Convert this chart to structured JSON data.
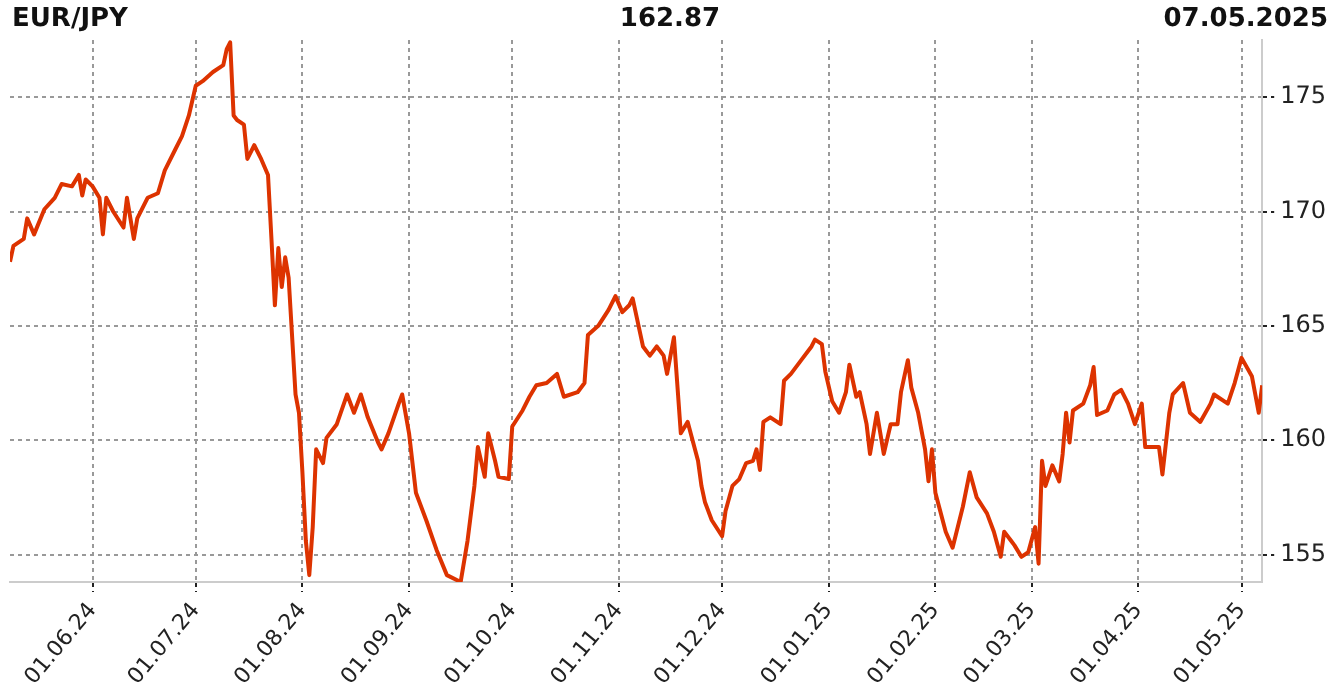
{
  "chart_data": {
    "type": "line",
    "title": "EUR/JPY",
    "annotations": [
      "162.87",
      "07.05.2025"
    ],
    "x": [
      "2024-05-08",
      "2024-05-09",
      "2024-05-12",
      "2024-05-13",
      "2024-05-15",
      "2024-05-18",
      "2024-05-21",
      "2024-05-23",
      "2024-05-26",
      "2024-05-28",
      "2024-05-29",
      "2024-05-30",
      "2024-06-01",
      "2024-06-03",
      "2024-06-04",
      "2024-06-05",
      "2024-06-07",
      "2024-06-10",
      "2024-06-11",
      "2024-06-13",
      "2024-06-14",
      "2024-06-17",
      "2024-06-20",
      "2024-06-22",
      "2024-06-25",
      "2024-06-27",
      "2024-06-29",
      "2024-07-01",
      "2024-07-03",
      "2024-07-06",
      "2024-07-09",
      "2024-07-10",
      "2024-07-11",
      "2024-07-12",
      "2024-07-13",
      "2024-07-15",
      "2024-07-16",
      "2024-07-18",
      "2024-07-20",
      "2024-07-22",
      "2024-07-23",
      "2024-07-24",
      "2024-07-25",
      "2024-07-26",
      "2024-07-27",
      "2024-07-28",
      "2024-07-30",
      "2024-07-31",
      "2024-08-01",
      "2024-08-02",
      "2024-08-03",
      "2024-08-04",
      "2024-08-05",
      "2024-08-07",
      "2024-08-08",
      "2024-08-11",
      "2024-08-14",
      "2024-08-16",
      "2024-08-18",
      "2024-08-20",
      "2024-08-23",
      "2024-08-24",
      "2024-08-26",
      "2024-08-29",
      "2024-08-30",
      "2024-09-01",
      "2024-09-03",
      "2024-09-06",
      "2024-09-09",
      "2024-09-12",
      "2024-09-16",
      "2024-09-18",
      "2024-09-20",
      "2024-09-21",
      "2024-09-23",
      "2024-09-24",
      "2024-09-26",
      "2024-09-27",
      "2024-09-30",
      "2024-10-01",
      "2024-10-04",
      "2024-10-06",
      "2024-10-08",
      "2024-10-11",
      "2024-10-14",
      "2024-10-16",
      "2024-10-20",
      "2024-10-22",
      "2024-10-23",
      "2024-10-26",
      "2024-10-29",
      "2024-10-31",
      "2024-11-02",
      "2024-11-04",
      "2024-11-05",
      "2024-11-06",
      "2024-11-08",
      "2024-11-10",
      "2024-11-12",
      "2024-11-14",
      "2024-11-15",
      "2024-11-17",
      "2024-11-18",
      "2024-11-19",
      "2024-11-21",
      "2024-11-24",
      "2024-11-25",
      "2024-11-26",
      "2024-11-28",
      "2024-12-01",
      "2024-12-02",
      "2024-12-04",
      "2024-12-06",
      "2024-12-08",
      "2024-12-10",
      "2024-12-11",
      "2024-12-12",
      "2024-12-13",
      "2024-12-15",
      "2024-12-18",
      "2024-12-19",
      "2024-12-21",
      "2024-12-24",
      "2024-12-27",
      "2024-12-28",
      "2024-12-30",
      "2024-12-31",
      "2025-01-02",
      "2025-01-04",
      "2025-01-06",
      "2025-01-07",
      "2025-01-09",
      "2025-01-10",
      "2025-01-12",
      "2025-01-13",
      "2025-01-15",
      "2025-01-17",
      "2025-01-19",
      "2025-01-21",
      "2025-01-22",
      "2025-01-24",
      "2025-01-25",
      "2025-01-27",
      "2025-01-29",
      "2025-01-30",
      "2025-01-31",
      "2025-02-01",
      "2025-02-04",
      "2025-02-06",
      "2025-02-09",
      "2025-02-11",
      "2025-02-13",
      "2025-02-16",
      "2025-02-18",
      "2025-02-20",
      "2025-02-21",
      "2025-02-23",
      "2025-02-24",
      "2025-02-26",
      "2025-02-28",
      "2025-03-02",
      "2025-03-03",
      "2025-03-04",
      "2025-03-05",
      "2025-03-07",
      "2025-03-09",
      "2025-03-10",
      "2025-03-11",
      "2025-03-12",
      "2025-03-13",
      "2025-03-16",
      "2025-03-18",
      "2025-03-19",
      "2025-03-20",
      "2025-03-23",
      "2025-03-25",
      "2025-03-27",
      "2025-03-29",
      "2025-03-31",
      "2025-04-02",
      "2025-04-03",
      "2025-04-07",
      "2025-04-08",
      "2025-04-10",
      "2025-04-11",
      "2025-04-14",
      "2025-04-16",
      "2025-04-19",
      "2025-04-22",
      "2025-04-23",
      "2025-04-27",
      "2025-04-29",
      "2025-05-01",
      "2025-05-04",
      "2025-05-06",
      "2025-05-07"
    ],
    "series": [
      {
        "color": "#dd3300",
        "values": [
          167.8,
          168.5,
          168.8,
          169.7,
          169.0,
          170.1,
          170.6,
          171.2,
          171.1,
          171.6,
          170.7,
          171.4,
          171.1,
          170.6,
          169.0,
          170.6,
          170.0,
          169.3,
          170.6,
          168.8,
          169.7,
          170.6,
          170.8,
          171.8,
          172.7,
          173.3,
          174.2,
          175.5,
          175.7,
          176.1,
          176.4,
          177.1,
          177.4,
          174.2,
          174.0,
          173.8,
          172.3,
          172.9,
          172.3,
          171.6,
          168.8,
          165.9,
          168.4,
          166.7,
          168.0,
          167.1,
          162.0,
          161.2,
          158.6,
          155.6,
          154.1,
          156.2,
          159.6,
          159.0,
          160.1,
          160.7,
          162.0,
          161.2,
          162.0,
          161.0,
          159.9,
          159.6,
          160.3,
          161.6,
          162.0,
          160.3,
          157.7,
          156.5,
          155.2,
          154.1,
          153.8,
          155.6,
          158.0,
          159.7,
          158.4,
          160.3,
          159.1,
          158.4,
          158.3,
          160.6,
          161.3,
          161.9,
          162.4,
          162.5,
          162.9,
          161.9,
          162.1,
          162.5,
          164.6,
          165.0,
          165.7,
          166.3,
          165.6,
          165.9,
          166.2,
          165.5,
          164.1,
          163.7,
          164.1,
          163.7,
          162.9,
          164.5,
          162.4,
          160.3,
          160.8,
          159.1,
          158.0,
          157.3,
          156.5,
          155.8,
          156.9,
          158.0,
          158.3,
          159.0,
          159.1,
          159.6,
          158.7,
          160.8,
          161.0,
          160.7,
          162.6,
          162.9,
          163.5,
          164.1,
          164.4,
          164.2,
          163.0,
          161.7,
          161.2,
          162.1,
          163.3,
          161.9,
          162.1,
          160.7,
          159.4,
          161.2,
          159.4,
          160.7,
          160.7,
          162.1,
          163.5,
          162.3,
          161.2,
          159.6,
          158.2,
          159.6,
          157.7,
          156.0,
          155.3,
          157.1,
          158.6,
          157.5,
          156.8,
          156.0,
          154.9,
          156.0,
          155.6,
          155.4,
          154.9,
          155.1,
          156.2,
          154.6,
          159.1,
          158.0,
          158.9,
          158.2,
          159.4,
          161.2,
          159.9,
          161.3,
          161.6,
          162.4,
          163.2,
          161.1,
          161.3,
          162.0,
          162.2,
          161.6,
          160.7,
          161.6,
          159.7,
          159.7,
          158.5,
          161.2,
          162.0,
          162.5,
          161.2,
          160.8,
          161.6,
          162.0,
          161.6,
          162.5,
          163.6,
          162.8,
          161.2,
          162.4
        ]
      }
    ],
    "xlim": [
      "2024-05-08",
      "2025-05-07"
    ],
    "xticks": [
      {
        "value": "2024-06-01",
        "label": "01.06.24"
      },
      {
        "value": "2024-07-01",
        "label": "01.07.24"
      },
      {
        "value": "2024-08-01",
        "label": "01.08.24"
      },
      {
        "value": "2024-09-01",
        "label": "01.09.24"
      },
      {
        "value": "2024-10-01",
        "label": "01.10.24"
      },
      {
        "value": "2024-11-01",
        "label": "01.11.24"
      },
      {
        "value": "2024-12-01",
        "label": "01.12.24"
      },
      {
        "value": "2025-01-01",
        "label": "01.01.25"
      },
      {
        "value": "2025-02-01",
        "label": "01.02.25"
      },
      {
        "value": "2025-03-01",
        "label": "01.03.25"
      },
      {
        "value": "2025-04-01",
        "label": "01.04.25"
      },
      {
        "value": "2025-05-01",
        "label": "01.05.25"
      }
    ],
    "ylim": [
      153.8,
      177.5
    ],
    "yticks": [
      155,
      160,
      165,
      170,
      175
    ],
    "grid": true,
    "marker": "none",
    "line_style": "solid"
  }
}
